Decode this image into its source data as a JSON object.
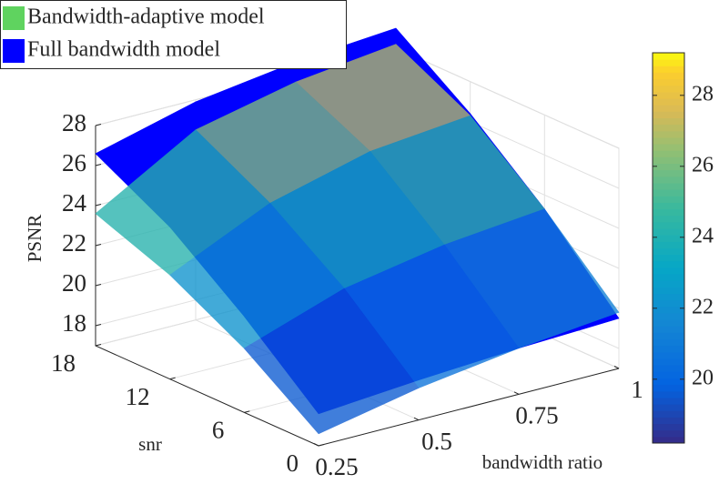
{
  "chart_data": {
    "type": "surface3d",
    "xlabel": "bandwidth ratio",
    "ylabel": "snr",
    "zlabel": "PSNR",
    "x": [
      0.25,
      0.5,
      0.75,
      1
    ],
    "y": [
      0,
      6,
      12,
      18
    ],
    "series": [
      {
        "name": "Full bandwidth model",
        "color": "#0000ff",
        "fill": "color",
        "z": [
          [
            18.6,
            19.0,
            19.3,
            19.5
          ],
          [
            21.8,
            22.6,
            23.0,
            23.3
          ],
          [
            24.6,
            25.6,
            26.1,
            26.4
          ],
          [
            26.6,
            27.9,
            28.6,
            29.0
          ]
        ]
      },
      {
        "name": "Bandwidth-adaptive model",
        "color": "#5fd35f",
        "fill": "colormap",
        "z": [
          [
            17.6,
            18.6,
            19.3,
            19.8
          ],
          [
            20.2,
            21.9,
            22.8,
            23.3
          ],
          [
            22.2,
            24.5,
            25.8,
            26.3
          ],
          [
            23.6,
            26.5,
            27.6,
            28.2
          ]
        ]
      }
    ],
    "legend_order": [
      1,
      0
    ],
    "legend_position": "upper left",
    "colormap": "parula",
    "xlim": [
      0.25,
      1
    ],
    "ylim": [
      0,
      18
    ],
    "zlim": [
      17,
      28
    ],
    "xticks": [
      0.25,
      0.5,
      0.75,
      1
    ],
    "yticks": [
      0,
      6,
      12,
      18
    ],
    "zticks": [
      18,
      20,
      22,
      24,
      26,
      28
    ],
    "clim": [
      18.2,
      29.2
    ],
    "cticks": [
      20,
      22,
      24,
      26,
      28
    ],
    "grid": true
  }
}
